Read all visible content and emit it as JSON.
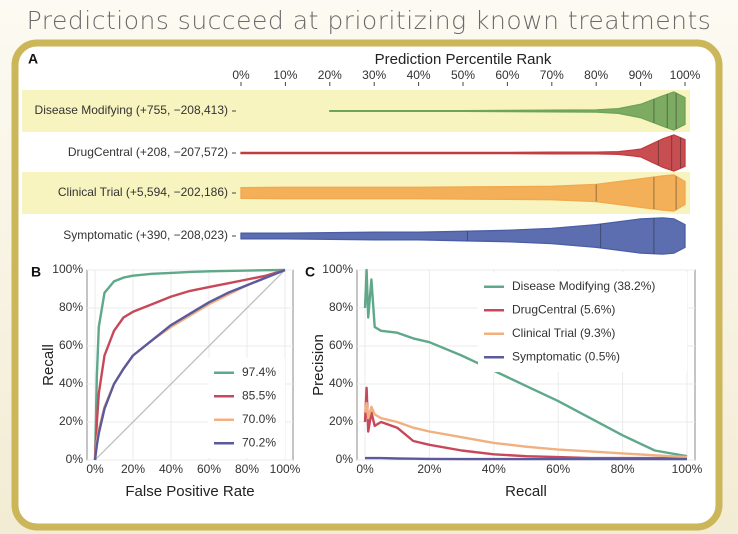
{
  "title": "Predictions succeed at prioritizing known treatments",
  "chart_data": [
    {
      "type": "violin",
      "panel": "A",
      "xlabel": "Prediction Percentile Rank",
      "xlim": [
        0,
        100
      ],
      "xticks": [
        {
          "value": 0,
          "label": "0%"
        },
        {
          "value": 10,
          "label": "10%"
        },
        {
          "value": 20,
          "label": "20%"
        },
        {
          "value": 30,
          "label": "30%"
        },
        {
          "value": 40,
          "label": "40%"
        },
        {
          "value": 50,
          "label": "50%"
        },
        {
          "value": 60,
          "label": "60%"
        },
        {
          "value": 70,
          "label": "70%"
        },
        {
          "value": 80,
          "label": "80%"
        },
        {
          "value": 90,
          "label": "90%"
        },
        {
          "value": 100,
          "label": "100%"
        }
      ],
      "highlight_color": "#f8f4c0",
      "series": [
        {
          "name": "Disease Modifying (+755, −208,413)",
          "color": "#6fa356",
          "highlight": true,
          "x": [
            20,
            30,
            40,
            50,
            60,
            70,
            80,
            85,
            90,
            95,
            97.5,
            100
          ],
          "density": [
            0.02,
            0.02,
            0.02,
            0.02,
            0.03,
            0.04,
            0.06,
            0.12,
            0.35,
            0.8,
            1.0,
            0.7
          ],
          "quantiles": [
            93,
            96,
            98
          ]
        },
        {
          "name": "DrugCentral (+208, −207,572)",
          "color": "#c23b3f",
          "highlight": false,
          "x": [
            0,
            10,
            20,
            30,
            40,
            50,
            60,
            70,
            80,
            85,
            90,
            95,
            97.5,
            100
          ],
          "density": [
            0.03,
            0.03,
            0.03,
            0.03,
            0.03,
            0.03,
            0.03,
            0.04,
            0.04,
            0.07,
            0.2,
            0.75,
            0.95,
            0.7
          ],
          "quantiles": [
            94,
            97,
            99
          ]
        },
        {
          "name": "Clinical Trial (+5,594, −202,186)",
          "color": "#f2a84c",
          "highlight": true,
          "x": [
            0,
            10,
            20,
            30,
            40,
            50,
            60,
            70,
            80,
            90,
            95,
            97.5,
            100
          ],
          "density": [
            0.28,
            0.3,
            0.3,
            0.3,
            0.3,
            0.32,
            0.33,
            0.35,
            0.45,
            0.75,
            0.9,
            0.95,
            0.6
          ],
          "quantiles": [
            80,
            93,
            98
          ]
        },
        {
          "name": "Symptomatic (+390, −208,023)",
          "color": "#4a5ea6",
          "highlight": false,
          "x": [
            0,
            10,
            20,
            30,
            40,
            50,
            60,
            70,
            80,
            90,
            95,
            97.5,
            100
          ],
          "density": [
            0.15,
            0.15,
            0.18,
            0.2,
            0.2,
            0.25,
            0.3,
            0.4,
            0.6,
            0.9,
            0.95,
            0.9,
            0.6
          ],
          "quantiles": [
            51,
            81,
            93
          ]
        }
      ]
    },
    {
      "type": "line",
      "panel": "B",
      "xlabel": "False Positive Rate",
      "ylabel": "Recall",
      "xlim": [
        0,
        100
      ],
      "ylim": [
        0,
        100
      ],
      "xticks": [
        {
          "value": 0,
          "label": "0%"
        },
        {
          "value": 20,
          "label": "20%"
        },
        {
          "value": 40,
          "label": "40%"
        },
        {
          "value": 60,
          "label": "60%"
        },
        {
          "value": 80,
          "label": "80%"
        },
        {
          "value": 100,
          "label": "100%"
        }
      ],
      "yticks": [
        {
          "value": 0,
          "label": "0%"
        },
        {
          "value": 20,
          "label": "20%"
        },
        {
          "value": 40,
          "label": "40%"
        },
        {
          "value": 60,
          "label": "60%"
        },
        {
          "value": 80,
          "label": "80%"
        },
        {
          "value": 100,
          "label": "100%"
        }
      ],
      "grid": true,
      "diagonal": true,
      "legend": "bottom-right",
      "x": [
        0,
        1,
        2,
        5,
        10,
        15,
        20,
        30,
        40,
        50,
        60,
        70,
        80,
        90,
        100
      ],
      "series": [
        {
          "name": "97.4%",
          "color": "#5fa88a",
          "values": [
            0,
            45,
            70,
            88,
            94,
            96,
            97,
            98,
            98.5,
            99,
            99.3,
            99.5,
            99.7,
            99.9,
            100
          ]
        },
        {
          "name": "85.5%",
          "color": "#c7485a",
          "values": [
            0,
            20,
            35,
            55,
            68,
            75,
            78,
            82,
            86,
            89,
            91,
            93,
            95,
            97,
            100
          ]
        },
        {
          "name": "70.0%",
          "color": "#f0b080",
          "values": [
            0,
            10,
            16,
            28,
            40,
            48,
            55,
            63,
            70,
            76,
            82,
            87,
            92,
            96,
            100
          ]
        },
        {
          "name": "70.2%",
          "color": "#5a5a9c",
          "values": [
            0,
            8,
            14,
            27,
            40,
            48,
            55,
            63,
            71,
            77,
            83,
            88,
            92,
            96,
            100
          ]
        }
      ]
    },
    {
      "type": "line",
      "panel": "C",
      "xlabel": "Recall",
      "ylabel": "Precision",
      "xlim": [
        0,
        100
      ],
      "ylim": [
        0,
        100
      ],
      "xticks": [
        {
          "value": 0,
          "label": "0%"
        },
        {
          "value": 20,
          "label": "20%"
        },
        {
          "value": 40,
          "label": "40%"
        },
        {
          "value": 60,
          "label": "60%"
        },
        {
          "value": 80,
          "label": "80%"
        },
        {
          "value": 100,
          "label": "100%"
        }
      ],
      "yticks": [
        {
          "value": 0,
          "label": "0%"
        },
        {
          "value": 20,
          "label": "20%"
        },
        {
          "value": 40,
          "label": "40%"
        },
        {
          "value": 60,
          "label": "60%"
        },
        {
          "value": 80,
          "label": "80%"
        },
        {
          "value": 100,
          "label": "100%"
        }
      ],
      "grid": true,
      "diagonal": false,
      "legend": "top-right",
      "x": [
        0,
        0.5,
        1,
        2,
        3,
        5,
        10,
        15,
        20,
        30,
        40,
        50,
        60,
        70,
        80,
        90,
        100
      ],
      "series": [
        {
          "name": "Disease Modifying (38.2%)",
          "color": "#5fa88a",
          "values": [
            80,
            100,
            75,
            95,
            70,
            68,
            67,
            64,
            62,
            55,
            47,
            39,
            31,
            22,
            13,
            5,
            2
          ]
        },
        {
          "name": "DrugCentral (5.6%)",
          "color": "#c7485a",
          "values": [
            20,
            38,
            15,
            25,
            18,
            20,
            17,
            10,
            8,
            5,
            3,
            2,
            1.5,
            1,
            1,
            1,
            1
          ]
        },
        {
          "name": "Clinical Trial (9.3%)",
          "color": "#f0b080",
          "values": [
            25,
            30,
            22,
            28,
            24,
            22,
            20,
            17,
            15,
            12,
            9,
            7,
            5.5,
            4.5,
            3.5,
            2.5,
            1.5
          ]
        },
        {
          "name": "Symptomatic (0.5%)",
          "color": "#5a5a9c",
          "values": [
            1,
            1,
            1,
            1,
            1,
            1,
            0.8,
            0.7,
            0.6,
            0.5,
            0.5,
            0.5,
            0.5,
            0.5,
            0.5,
            0.5,
            0.5
          ]
        }
      ]
    }
  ]
}
